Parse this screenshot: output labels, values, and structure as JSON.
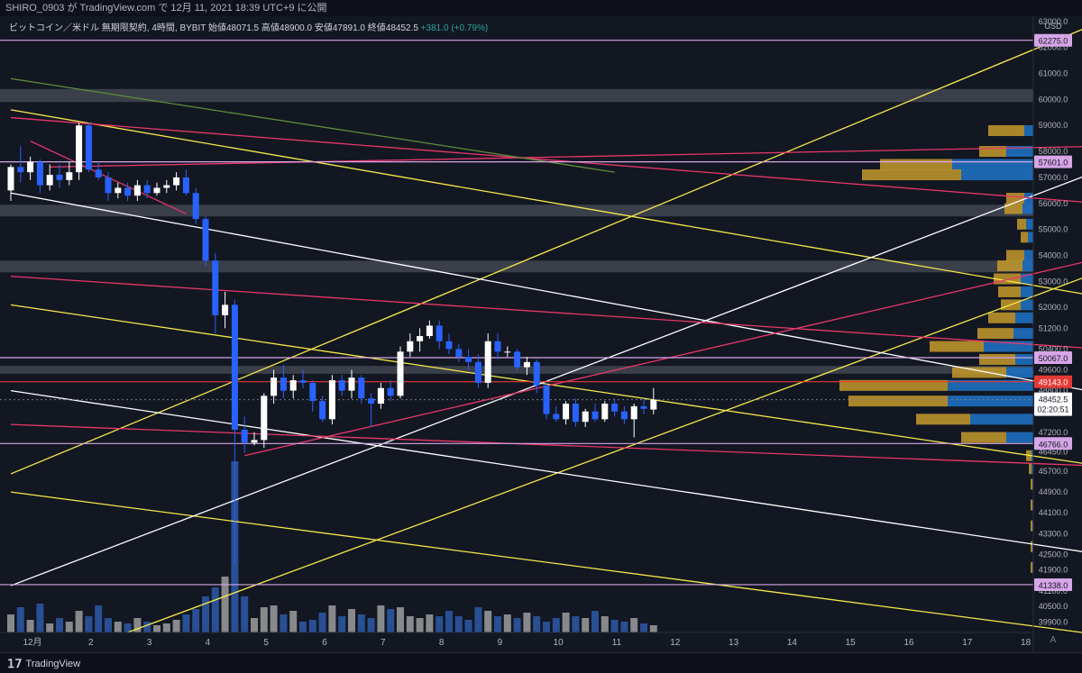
{
  "header": {
    "publish_line": "SHIRO_0903 が TradingView.com で 12月 11, 2021 18:39 UTC+9 に公開",
    "legend_symbol": "ビットコイン／米ドル 無期限契約, 4時間, BYBIT",
    "open_label": "始値",
    "open_value": "48071.5",
    "high_label": "高値",
    "high_value": "48900.0",
    "low_label": "安値",
    "low_value": "47891.0",
    "close_label": "終値",
    "close_value": "48452.5",
    "change": "+381.0 (+0.79%)"
  },
  "footer": {
    "brand": "TradingView",
    "autoscale": "A"
  },
  "colors": {
    "background": "#131722",
    "bull_candle": "#ffffff",
    "bear_candle": "#2962ff",
    "yellow_line": "#f5e94a",
    "pink_line": "#e8386b",
    "white_line": "#ffffff",
    "horizontal_level": "#d6a6e6",
    "red_level": "#e53935",
    "zone": "#5d606b",
    "vp_buy": "#c59a2b",
    "vp_sell": "#1e6fbf"
  },
  "chart_data": {
    "type": "candlestick",
    "currency": "USD",
    "ylim": [
      39500,
      63200
    ],
    "y_ticks": [
      39900,
      40500,
      41100,
      41900,
      42500,
      43300,
      44100,
      44900,
      45700,
      46450,
      47200,
      48000,
      48800,
      49600,
      50400,
      51200,
      52000,
      53000,
      54000,
      55000,
      56000,
      57000,
      58000,
      59000,
      60000,
      61000,
      62000,
      63000
    ],
    "x_ticks": [
      {
        "label": "12月",
        "x": 0
      },
      {
        "label": "2",
        "x": 6
      },
      {
        "label": "3",
        "x": 12
      },
      {
        "label": "4",
        "x": 18
      },
      {
        "label": "5",
        "x": 24
      },
      {
        "label": "6",
        "x": 30
      },
      {
        "label": "7",
        "x": 36
      },
      {
        "label": "8",
        "x": 42
      },
      {
        "label": "9",
        "x": 48
      },
      {
        "label": "10",
        "x": 54
      },
      {
        "label": "11",
        "x": 60
      },
      {
        "label": "12",
        "x": 66
      },
      {
        "label": "13",
        "x": 72
      },
      {
        "label": "14",
        "x": 78
      },
      {
        "label": "15",
        "x": 84
      },
      {
        "label": "16",
        "x": 90
      },
      {
        "label": "17",
        "x": 96
      },
      {
        "label": "18",
        "x": 102
      }
    ],
    "candles": [
      [
        56500,
        57500,
        56100,
        57400
      ],
      [
        57400,
        58200,
        56800,
        57200
      ],
      [
        57200,
        57800,
        56900,
        57600
      ],
      [
        57600,
        57700,
        56400,
        56700
      ],
      [
        56700,
        57500,
        56500,
        57100
      ],
      [
        57100,
        57500,
        56600,
        56900
      ],
      [
        56900,
        57600,
        56700,
        57200
      ],
      [
        57200,
        59100,
        56900,
        59000
      ],
      [
        59000,
        59100,
        57200,
        57300
      ],
      [
        57300,
        57600,
        56900,
        57000
      ],
      [
        57000,
        57200,
        56100,
        56400
      ],
      [
        56400,
        56800,
        56200,
        56600
      ],
      [
        56600,
        56800,
        56100,
        56300
      ],
      [
        56300,
        56900,
        56100,
        56700
      ],
      [
        56700,
        56900,
        56200,
        56400
      ],
      [
        56400,
        56800,
        56300,
        56600
      ],
      [
        56600,
        56900,
        56400,
        56700
      ],
      [
        56700,
        57200,
        56500,
        57000
      ],
      [
        57000,
        57300,
        56300,
        56400
      ],
      [
        56400,
        56600,
        55200,
        55400
      ],
      [
        55400,
        55500,
        53600,
        53800
      ],
      [
        53800,
        54100,
        51000,
        51700
      ],
      [
        51700,
        52600,
        51200,
        52100
      ],
      [
        52100,
        52300,
        42200,
        47300
      ],
      [
        47300,
        47800,
        46400,
        46800
      ],
      [
        46800,
        47200,
        46700,
        46900
      ],
      [
        46900,
        48700,
        46600,
        48600
      ],
      [
        48600,
        49600,
        48300,
        49300
      ],
      [
        49300,
        49800,
        48500,
        48800
      ],
      [
        48800,
        49400,
        48500,
        49200
      ],
      [
        49200,
        49600,
        48900,
        49100
      ],
      [
        49100,
        49200,
        48000,
        48400
      ],
      [
        48400,
        48600,
        47600,
        47700
      ],
      [
        47700,
        49400,
        47500,
        49200
      ],
      [
        49200,
        49400,
        48600,
        48800
      ],
      [
        48800,
        49600,
        48500,
        49300
      ],
      [
        49300,
        49400,
        48300,
        48500
      ],
      [
        48500,
        48700,
        47400,
        48300
      ],
      [
        48300,
        49100,
        48100,
        48900
      ],
      [
        48900,
        49200,
        48400,
        48600
      ],
      [
        48600,
        50500,
        48500,
        50300
      ],
      [
        50300,
        51000,
        50100,
        50700
      ],
      [
        50700,
        51200,
        50300,
        50900
      ],
      [
        50900,
        51500,
        50800,
        51300
      ],
      [
        51300,
        51500,
        50400,
        50700
      ],
      [
        50700,
        51000,
        50200,
        50400
      ],
      [
        50400,
        50600,
        49900,
        50100
      ],
      [
        50100,
        50400,
        49600,
        49900
      ],
      [
        49900,
        50200,
        48900,
        49100
      ],
      [
        49100,
        51000,
        48900,
        50700
      ],
      [
        50700,
        51000,
        50000,
        50300
      ],
      [
        50300,
        50500,
        50100,
        50300
      ],
      [
        50300,
        50400,
        49600,
        49700
      ],
      [
        49700,
        50100,
        49400,
        49900
      ],
      [
        49900,
        50000,
        48700,
        49000
      ],
      [
        49000,
        49100,
        47700,
        47900
      ],
      [
        47900,
        48200,
        47600,
        47700
      ],
      [
        47700,
        48400,
        47500,
        48300
      ],
      [
        48300,
        48500,
        47400,
        47600
      ],
      [
        47600,
        48100,
        47400,
        48000
      ],
      [
        48000,
        48300,
        47600,
        47700
      ],
      [
        47700,
        48400,
        47600,
        48300
      ],
      [
        48300,
        48500,
        47800,
        48000
      ],
      [
        48000,
        48200,
        47500,
        47700
      ],
      [
        47700,
        48300,
        47000,
        48200
      ],
      [
        48200,
        48500,
        47900,
        48100
      ],
      [
        48071.5,
        48900,
        47891,
        48452.5
      ]
    ],
    "volume_heights": [
      20,
      28,
      14,
      32,
      10,
      16,
      12,
      24,
      18,
      30,
      16,
      12,
      10,
      16,
      12,
      8,
      10,
      14,
      20,
      26,
      40,
      50,
      62,
      190,
      40,
      16,
      28,
      30,
      20,
      24,
      12,
      14,
      22,
      30,
      18,
      26,
      20,
      16,
      30,
      26,
      28,
      18,
      16,
      20,
      18,
      24,
      18,
      14,
      28,
      24,
      18,
      20,
      16,
      22,
      18,
      12,
      16,
      22,
      18,
      16,
      24,
      18,
      14,
      12,
      16,
      10,
      8
    ],
    "horizontal_levels": [
      {
        "label": "62275.0",
        "price": 62275,
        "color": "#d6a6e6"
      },
      {
        "label": "57601.0",
        "price": 57601,
        "color": "#d6a6e6"
      },
      {
        "label": "50067.0",
        "price": 50067,
        "color": "#d6a6e6"
      },
      {
        "label": "49143.0",
        "price": 49143,
        "color": "#e53935"
      },
      {
        "label": "46766.0",
        "price": 46766,
        "color": "#d6a6e6"
      },
      {
        "label": "41338.0",
        "price": 41338,
        "color": "#d6a6e6"
      }
    ],
    "last_price": {
      "label": "48452.5",
      "countdown": "02:20:51",
      "price": 48452.5
    },
    "zones": [
      {
        "from": 59900,
        "to": 60400
      },
      {
        "from": 55500,
        "to": 55950
      },
      {
        "from": 53350,
        "to": 53800
      },
      {
        "from": 49450,
        "to": 49750
      }
    ],
    "trendlines": [
      {
        "color": "#f5e94a",
        "points": [
          [
            0,
            59600
          ],
          [
            112,
            52400
          ]
        ]
      },
      {
        "color": "#f5e94a",
        "points": [
          [
            0,
            52100
          ],
          [
            112,
            45900
          ]
        ]
      },
      {
        "color": "#f5e94a",
        "points": [
          [
            0,
            44900
          ],
          [
            110,
            39500
          ]
        ]
      },
      {
        "color": "#f5e94a",
        "points": [
          [
            0,
            45600
          ],
          [
            112,
            63000
          ]
        ]
      },
      {
        "color": "#f5e94a",
        "points": [
          [
            12,
            39500
          ],
          [
            112,
            53400
          ]
        ]
      },
      {
        "color": "#ffffff",
        "points": [
          [
            0,
            56400
          ],
          [
            112,
            48700
          ]
        ]
      },
      {
        "color": "#ffffff",
        "points": [
          [
            0,
            48800
          ],
          [
            112,
            42500
          ]
        ]
      },
      {
        "color": "#ffffff",
        "points": [
          [
            0,
            41300
          ],
          [
            112,
            57300
          ]
        ]
      },
      {
        "color": "#e8386b",
        "points": [
          [
            0,
            59300
          ],
          [
            112,
            56000
          ]
        ]
      },
      {
        "color": "#e8386b",
        "points": [
          [
            0,
            53200
          ],
          [
            112,
            50400
          ]
        ]
      },
      {
        "color": "#e8386b",
        "points": [
          [
            0,
            47500
          ],
          [
            112,
            45900
          ]
        ]
      },
      {
        "color": "#e8386b",
        "points": [
          [
            24,
            46300
          ],
          [
            112,
            53900
          ]
        ]
      },
      {
        "color": "#e8386b",
        "points": [
          [
            4,
            57400
          ],
          [
            112,
            58200
          ]
        ]
      },
      {
        "color": "#e8386b",
        "points": [
          [
            2,
            58400
          ],
          [
            18,
            55600
          ]
        ]
      },
      {
        "color": "#5f8f3a",
        "points": [
          [
            0,
            60800
          ],
          [
            62,
            57200
          ]
        ]
      }
    ],
    "volume_profile": [
      {
        "price": 58800,
        "buy": 40,
        "sell": 10
      },
      {
        "price": 58000,
        "buy": 30,
        "sell": 30
      },
      {
        "price": 57500,
        "buy": 80,
        "sell": 90
      },
      {
        "price": 57100,
        "buy": 110,
        "sell": 80
      },
      {
        "price": 56200,
        "buy": 20,
        "sell": 10
      },
      {
        "price": 55800,
        "buy": 20,
        "sell": 12
      },
      {
        "price": 55200,
        "buy": 10,
        "sell": 8
      },
      {
        "price": 54700,
        "buy": 8,
        "sell": 6
      },
      {
        "price": 54000,
        "buy": 20,
        "sell": 10
      },
      {
        "price": 53600,
        "buy": 28,
        "sell": 12
      },
      {
        "price": 53100,
        "buy": 30,
        "sell": 14
      },
      {
        "price": 52600,
        "buy": 25,
        "sell": 14
      },
      {
        "price": 52100,
        "buy": 22,
        "sell": 14
      },
      {
        "price": 51600,
        "buy": 30,
        "sell": 20
      },
      {
        "price": 51000,
        "buy": 40,
        "sell": 22
      },
      {
        "price": 50500,
        "buy": 60,
        "sell": 55
      },
      {
        "price": 50000,
        "buy": 40,
        "sell": 20
      },
      {
        "price": 49500,
        "buy": 60,
        "sell": 30
      },
      {
        "price": 49000,
        "buy": 120,
        "sell": 95
      },
      {
        "price": 48400,
        "buy": 110,
        "sell": 95
      },
      {
        "price": 47700,
        "buy": 60,
        "sell": 70
      },
      {
        "price": 47000,
        "buy": 50,
        "sell": 30
      },
      {
        "price": 46300,
        "buy": 6,
        "sell": 2
      },
      {
        "price": 45800,
        "buy": 3,
        "sell": 2
      },
      {
        "price": 45200,
        "buy": 2,
        "sell": 1
      },
      {
        "price": 44400,
        "buy": 2,
        "sell": 1
      },
      {
        "price": 43600,
        "buy": 2,
        "sell": 1
      },
      {
        "price": 42800,
        "buy": 2,
        "sell": 1
      },
      {
        "price": 42000,
        "buy": 2,
        "sell": 1
      }
    ]
  }
}
